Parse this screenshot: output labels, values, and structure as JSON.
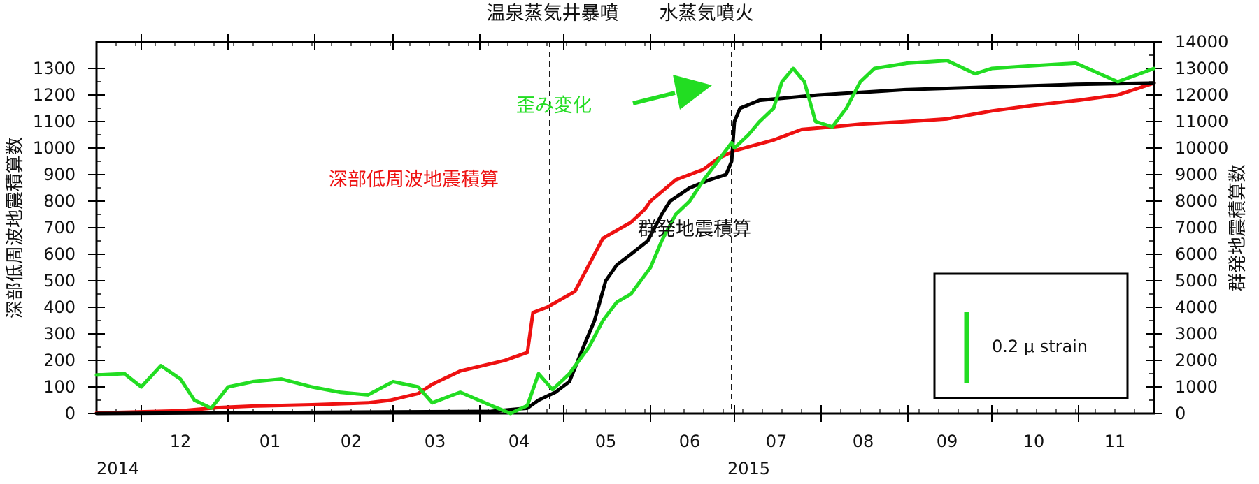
{
  "chart_data": {
    "type": "line",
    "x_axis": {
      "months": [
        "12",
        "01",
        "02",
        "03",
        "04",
        "05",
        "06",
        "07",
        "08",
        "09",
        "10",
        "11"
      ],
      "years": [
        "2014",
        "2015"
      ],
      "range": [
        "2014-11-15",
        "2015-11-28"
      ]
    },
    "y_left": {
      "label": "深部低周波地震積算数",
      "range": [
        0,
        1400
      ],
      "ticks": [
        0,
        100,
        200,
        300,
        400,
        500,
        600,
        700,
        800,
        900,
        1000,
        1100,
        1200,
        1300
      ]
    },
    "y_right": {
      "label": "群発地震積算数",
      "range": [
        0,
        14000
      ],
      "ticks": [
        0,
        1000,
        2000,
        3000,
        4000,
        5000,
        6000,
        7000,
        8000,
        9000,
        10000,
        11000,
        12000,
        13000,
        14000
      ]
    },
    "event_lines": [
      {
        "date": "2015-04-26",
        "label": "温泉蒸気井暴噴"
      },
      {
        "date": "2015-06-30",
        "label": "水蒸気噴火"
      }
    ],
    "series": [
      {
        "name": "深部低周波地震積算",
        "color": "#ee1111",
        "axis": "left",
        "points": [
          [
            "2014-11-15",
            2
          ],
          [
            "2014-12-15",
            10
          ],
          [
            "2014-12-28",
            22
          ],
          [
            "2015-01-10",
            28
          ],
          [
            "2015-01-31",
            33
          ],
          [
            "2015-02-20",
            40
          ],
          [
            "2015-02-28",
            50
          ],
          [
            "2015-03-10",
            75
          ],
          [
            "2015-03-15",
            110
          ],
          [
            "2015-03-25",
            160
          ],
          [
            "2015-04-10",
            200
          ],
          [
            "2015-04-18",
            230
          ],
          [
            "2015-04-20",
            380
          ],
          [
            "2015-04-25",
            400
          ],
          [
            "2015-05-05",
            460
          ],
          [
            "2015-05-10",
            560
          ],
          [
            "2015-05-15",
            660
          ],
          [
            "2015-05-25",
            720
          ],
          [
            "2015-05-30",
            770
          ],
          [
            "2015-06-01",
            800
          ],
          [
            "2015-06-10",
            880
          ],
          [
            "2015-06-20",
            920
          ],
          [
            "2015-06-25",
            960
          ],
          [
            "2015-07-01",
            990
          ],
          [
            "2015-07-15",
            1030
          ],
          [
            "2015-07-25",
            1070
          ],
          [
            "2015-08-05",
            1080
          ],
          [
            "2015-08-15",
            1090
          ],
          [
            "2015-09-01",
            1100
          ],
          [
            "2015-09-15",
            1110
          ],
          [
            "2015-10-01",
            1140
          ],
          [
            "2015-10-15",
            1160
          ],
          [
            "2015-11-01",
            1180
          ],
          [
            "2015-11-15",
            1200
          ],
          [
            "2015-11-28",
            1245
          ]
        ]
      },
      {
        "name": "群発地震積算",
        "color": "#000000",
        "axis": "right",
        "points": [
          [
            "2014-11-15",
            0
          ],
          [
            "2015-04-05",
            80
          ],
          [
            "2015-04-18",
            200
          ],
          [
            "2015-04-22",
            500
          ],
          [
            "2015-04-28",
            800
          ],
          [
            "2015-05-03",
            1200
          ],
          [
            "2015-05-08",
            2500
          ],
          [
            "2015-05-12",
            3500
          ],
          [
            "2015-05-16",
            5000
          ],
          [
            "2015-05-20",
            5600
          ],
          [
            "2015-05-25",
            6000
          ],
          [
            "2015-05-31",
            6500
          ],
          [
            "2015-06-05",
            7500
          ],
          [
            "2015-06-08",
            8000
          ],
          [
            "2015-06-15",
            8500
          ],
          [
            "2015-06-22",
            8800
          ],
          [
            "2015-06-28",
            9000
          ],
          [
            "2015-06-30",
            9500
          ],
          [
            "2015-07-01",
            11000
          ],
          [
            "2015-07-03",
            11500
          ],
          [
            "2015-07-10",
            11800
          ],
          [
            "2015-07-31",
            12000
          ],
          [
            "2015-08-31",
            12200
          ],
          [
            "2015-09-30",
            12300
          ],
          [
            "2015-10-31",
            12400
          ],
          [
            "2015-11-28",
            12450
          ]
        ]
      },
      {
        "name": "歪み変化",
        "color": "#22dd22",
        "axis": "right",
        "points": [
          [
            "2014-11-15",
            1450
          ],
          [
            "2014-11-25",
            1500
          ],
          [
            "2014-12-01",
            1000
          ],
          [
            "2014-12-08",
            1800
          ],
          [
            "2014-12-15",
            1300
          ],
          [
            "2014-12-20",
            500
          ],
          [
            "2014-12-26",
            200
          ],
          [
            "2015-01-01",
            1000
          ],
          [
            "2015-01-10",
            1200
          ],
          [
            "2015-01-20",
            1300
          ],
          [
            "2015-01-31",
            1000
          ],
          [
            "2015-02-10",
            800
          ],
          [
            "2015-02-20",
            700
          ],
          [
            "2015-03-01",
            1200
          ],
          [
            "2015-03-10",
            1000
          ],
          [
            "2015-03-15",
            400
          ],
          [
            "2015-03-25",
            800
          ],
          [
            "2015-04-05",
            300
          ],
          [
            "2015-04-12",
            0
          ],
          [
            "2015-04-18",
            300
          ],
          [
            "2015-04-22",
            1500
          ],
          [
            "2015-04-27",
            900
          ],
          [
            "2015-05-03",
            1500
          ],
          [
            "2015-05-10",
            2500
          ],
          [
            "2015-05-15",
            3500
          ],
          [
            "2015-05-20",
            4200
          ],
          [
            "2015-05-25",
            4500
          ],
          [
            "2015-06-01",
            5500
          ],
          [
            "2015-06-05",
            6500
          ],
          [
            "2015-06-10",
            7500
          ],
          [
            "2015-06-15",
            8000
          ],
          [
            "2015-06-20",
            8800
          ],
          [
            "2015-06-25",
            9500
          ],
          [
            "2015-06-30",
            10200
          ],
          [
            "2015-07-01",
            10000
          ],
          [
            "2015-07-06",
            10500
          ],
          [
            "2015-07-10",
            11000
          ],
          [
            "2015-07-15",
            11500
          ],
          [
            "2015-07-18",
            12500
          ],
          [
            "2015-07-22",
            13000
          ],
          [
            "2015-07-26",
            12500
          ],
          [
            "2015-07-30",
            11000
          ],
          [
            "2015-08-05",
            10800
          ],
          [
            "2015-08-10",
            11500
          ],
          [
            "2015-08-15",
            12500
          ],
          [
            "2015-08-20",
            13000
          ],
          [
            "2015-09-01",
            13200
          ],
          [
            "2015-09-15",
            13300
          ],
          [
            "2015-09-25",
            12800
          ],
          [
            "2015-10-01",
            13000
          ],
          [
            "2015-10-15",
            13100
          ],
          [
            "2015-10-31",
            13200
          ],
          [
            "2015-11-15",
            12500
          ],
          [
            "2015-11-28",
            13000
          ]
        ]
      }
    ],
    "annotations": {
      "strain_label": "歪み変化",
      "deep_label": "深部低周波地震積算",
      "swarm_label": "群発地震積算"
    },
    "scale_box": {
      "label": "0.2 μ strain",
      "color": "#22dd22"
    }
  }
}
